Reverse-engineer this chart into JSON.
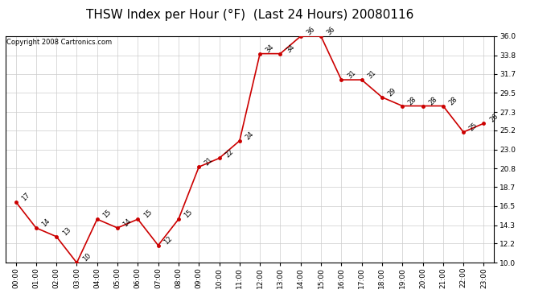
{
  "title": "THSW Index per Hour (°F)  (Last 24 Hours) 20080116",
  "copyright": "Copyright 2008 Cartronics.com",
  "hours": [
    "00:00",
    "01:00",
    "02:00",
    "03:00",
    "04:00",
    "05:00",
    "06:00",
    "07:00",
    "08:00",
    "09:00",
    "10:00",
    "11:00",
    "12:00",
    "13:00",
    "14:00",
    "15:00",
    "16:00",
    "17:00",
    "18:00",
    "19:00",
    "20:00",
    "21:00",
    "22:00",
    "23:00"
  ],
  "values": [
    17,
    14,
    13,
    10,
    15,
    14,
    15,
    12,
    15,
    21,
    22,
    24,
    34,
    34,
    36,
    36,
    31,
    31,
    29,
    28,
    28,
    28,
    25,
    26
  ],
  "line_color": "#cc0000",
  "marker_color": "#cc0000",
  "bg_color": "#ffffff",
  "plot_bg_color": "#ffffff",
  "grid_color": "#cccccc",
  "ylim_min": 10.0,
  "ylim_max": 36.0,
  "yticks": [
    10.0,
    12.2,
    14.3,
    16.5,
    18.7,
    20.8,
    23.0,
    25.2,
    27.3,
    29.5,
    31.7,
    33.8,
    36.0
  ],
  "title_fontsize": 11,
  "label_fontsize": 6,
  "tick_fontsize": 6.5,
  "copyright_fontsize": 6
}
